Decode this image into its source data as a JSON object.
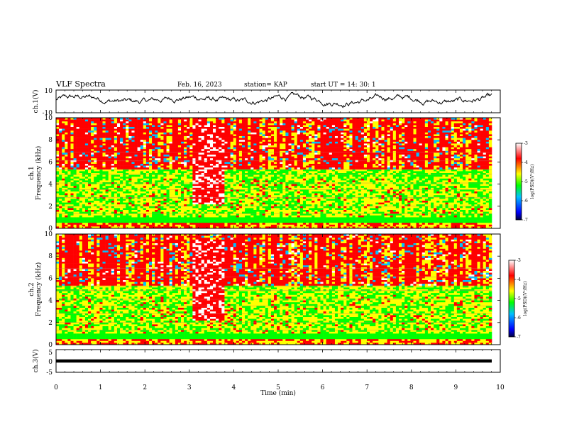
{
  "header": {
    "title": "VLF Spectra",
    "date": "Feb. 16, 2023",
    "station": "station= KAP",
    "start": "start  UT  =   14: 30: 1"
  },
  "chart_data": [
    {
      "type": "line",
      "name": "ch1-waveform",
      "ylabel": "ch.1(V)",
      "ylim": [
        -10,
        10
      ],
      "yticks": [
        "10",
        "-10"
      ],
      "xlim": [
        0,
        10
      ],
      "description_free": true
    },
    {
      "type": "heatmap",
      "name": "ch1-spectrogram",
      "ylabel_top": "ch.1",
      "ylabel": "Frequency  (kHz)",
      "ylim": [
        0,
        10
      ],
      "yticks": [
        "0",
        "2",
        "4",
        "6",
        "8",
        "10"
      ],
      "xlim": [
        0,
        9.8
      ],
      "colorbar": {
        "label": "log(PSD)(V²/Hz)",
        "range": [
          -7,
          -3
        ],
        "ticks": [
          "-3",
          "-4",
          "-5",
          "-6",
          "-7"
        ]
      }
    },
    {
      "type": "heatmap",
      "name": "ch2-spectrogram",
      "ylabel_top": "ch.2",
      "ylabel": "Frequency  (kHz)",
      "ylim": [
        0,
        10
      ],
      "yticks": [
        "0",
        "2",
        "4",
        "6",
        "8",
        "10"
      ],
      "xlim": [
        0,
        9.8
      ],
      "colorbar": {
        "label": "log(PSD)(V²/Hz)",
        "range": [
          -7,
          -3
        ],
        "ticks": [
          "-3",
          "-4",
          "-5",
          "-6",
          "-7"
        ]
      }
    },
    {
      "type": "line",
      "name": "ch3-waveform",
      "ylabel": "ch.3(V)",
      "ylim": [
        -5,
        5
      ],
      "yticks": [
        "5",
        "0",
        "-5"
      ],
      "xlim": [
        0,
        10
      ],
      "value_band": [
        -0.7,
        0.7
      ]
    }
  ],
  "xaxis": {
    "label": "Time  (min)",
    "ticks": [
      "0",
      "1",
      "2",
      "3",
      "4",
      "5",
      "6",
      "7",
      "8",
      "9",
      "10"
    ],
    "range": [
      0,
      10
    ]
  },
  "colors": {
    "spectrum": [
      "#000040",
      "#0000ff",
      "#00c0ff",
      "#00ff00",
      "#ffff00",
      "#ff0000",
      "#ffffff"
    ]
  }
}
